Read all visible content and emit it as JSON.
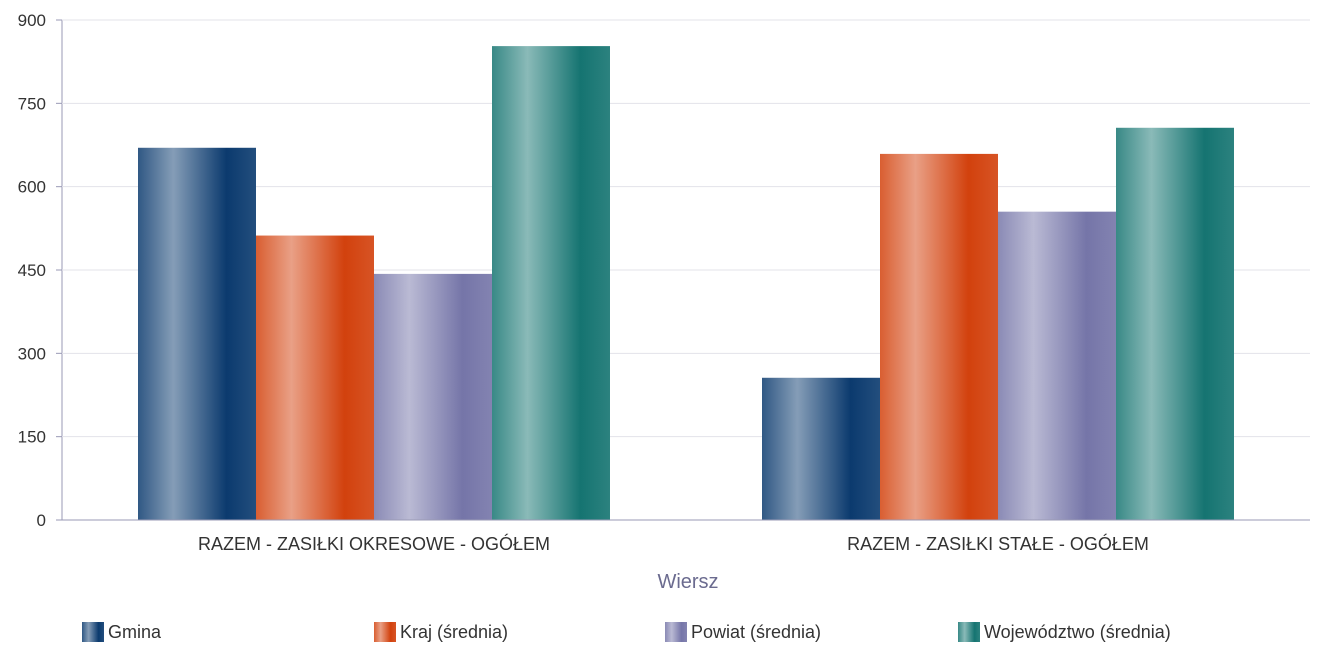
{
  "chart_data": {
    "type": "bar",
    "categories": [
      "RAZEM -  ZASIŁKI OKRESOWE - OGÓŁEM",
      "RAZEM -  ZASIŁKI STAŁE - OGÓŁEM"
    ],
    "series": [
      {
        "name": "Gmina",
        "values": [
          670,
          256
        ],
        "color": "#0b3a6e"
      },
      {
        "name": "Kraj (średnia)",
        "values": [
          512,
          659
        ],
        "color": "#d2410d"
      },
      {
        "name": "Powiat (średnia)",
        "values": [
          443,
          555
        ],
        "color": "#7575a8"
      },
      {
        "name": "Województwo (średnia)",
        "values": [
          853,
          706
        ],
        "color": "#157471"
      }
    ],
    "xlabel": "Wiersz",
    "ylabel": "",
    "ylim": [
      0,
      900
    ],
    "yticks": [
      "0",
      "150",
      "300",
      "450",
      "600",
      "750",
      "900"
    ],
    "grid": true,
    "legend_position": "bottom"
  }
}
